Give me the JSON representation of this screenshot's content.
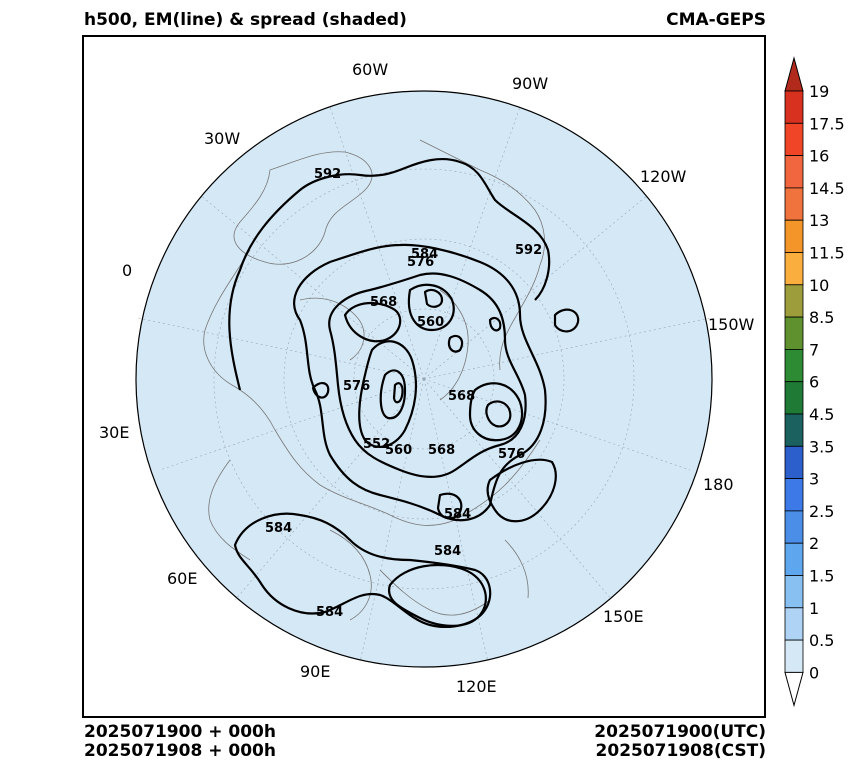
{
  "header": {
    "title": "h500, EM(line) & spread (shaded)",
    "model": "CMA-GEPS"
  },
  "footer": {
    "init_time": "2025071900 + 000h",
    "init_time_local": "2025071908 + 000h",
    "valid_utc": "2025071900(UTC)",
    "valid_cst": "2025071908(CST)"
  },
  "map": {
    "projection": "north polar stereographic",
    "ocean_fill": "#d5e8f6",
    "longitude_labels": [
      "60W",
      "90W",
      "30W",
      "120W",
      "0",
      "150W",
      "30E",
      "180",
      "60E",
      "150E",
      "90E",
      "120E"
    ],
    "contour_labels": [
      "592",
      "592",
      "584",
      "576",
      "568",
      "560",
      "576",
      "568",
      "552",
      "560",
      "568",
      "576",
      "584",
      "584",
      "584",
      "584"
    ]
  },
  "colorbar": {
    "labels": [
      "19",
      "17.5",
      "16",
      "14.5",
      "13",
      "11.5",
      "10",
      "8.5",
      "7",
      "6",
      "4.5",
      "3.5",
      "3",
      "2.5",
      "2",
      "1.5",
      "1",
      "0.5",
      "0"
    ],
    "colors": [
      "#b22a1c",
      "#d8311f",
      "#f04527",
      "#f1663e",
      "#f0733d",
      "#f39529",
      "#f9ae3e",
      "#9d9e3b",
      "#5f922f",
      "#2d8b34",
      "#1f7a36",
      "#1a6160",
      "#2c5fcc",
      "#3d7ae8",
      "#4a8ee8",
      "#5ea6ee",
      "#88c0f2",
      "#aed3f4",
      "#d5e8f6"
    ]
  }
}
